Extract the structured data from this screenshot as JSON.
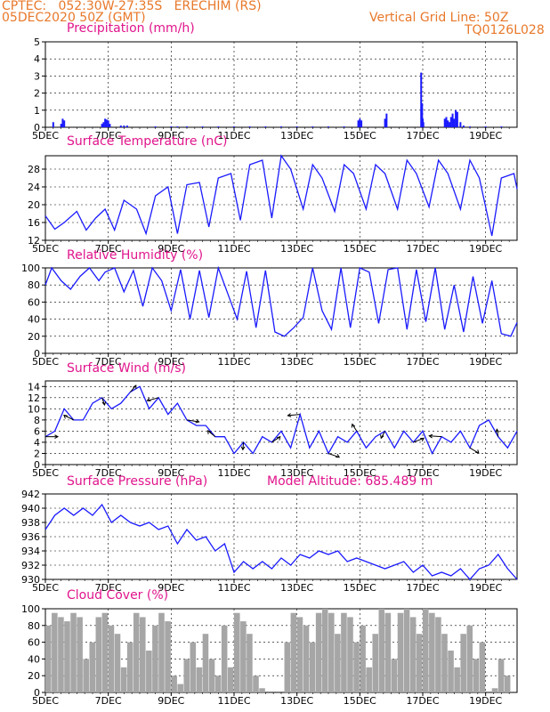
{
  "header": {
    "line1_left": "CPTEC:   052:30W-27:35S   ERECHIM (RS)",
    "line2_left": "05DEC2020 50Z (GMT)",
    "line1_right": "Vertical Grid Line: 50Z",
    "line2_right": "TQ0126L028"
  },
  "colors": {
    "header": "#e8782a",
    "title": "#e0158c",
    "series": "#1a1aff",
    "cloud": "#a6a6a6",
    "grid": "#000000"
  },
  "x_axis": {
    "day_ticks": [
      "5DEC",
      "7DEC",
      "9DEC",
      "11DEC",
      "13DEC",
      "15DEC",
      "17DEC",
      "19DEC"
    ],
    "day_values": [
      5,
      7,
      9,
      11,
      13,
      15,
      17,
      19
    ],
    "xlim": [
      5,
      20
    ]
  },
  "chart_data": [
    {
      "id": "precip",
      "type": "bar",
      "title": "Precipitation (mm/h)",
      "ylim": [
        0,
        5
      ],
      "yticks": [
        "0",
        "1",
        "2",
        "3",
        "4",
        "5"
      ],
      "ytick_values": [
        0,
        1,
        2,
        3,
        4,
        5
      ],
      "x": [
        5.25,
        5.5,
        5.55,
        5.6,
        6.8,
        6.85,
        6.9,
        6.95,
        7.0,
        7.05,
        7.4,
        7.5,
        7.6,
        8.5,
        9.0,
        9.2,
        9.5,
        10.0,
        10.5,
        11.0,
        11.5,
        12.0,
        12.5,
        13.0,
        13.5,
        14.0,
        14.5,
        14.95,
        15.0,
        15.05,
        15.8,
        15.85,
        16.95,
        16.98,
        17.0,
        17.02,
        17.7,
        17.75,
        17.8,
        17.85,
        17.9,
        17.95,
        18.0,
        18.05,
        18.1,
        18.2,
        18.3,
        18.5,
        19.0,
        19.5
      ],
      "values": [
        0.3,
        0.2,
        0.5,
        0.4,
        0.2,
        0.3,
        0.5,
        0.45,
        0.4,
        0.2,
        0.1,
        0.1,
        0.1,
        0.05,
        0.05,
        0.05,
        0.05,
        0.05,
        0.05,
        0.05,
        0.05,
        0.05,
        0.05,
        0.05,
        0.05,
        0.05,
        0.05,
        0.4,
        0.5,
        0.4,
        0.5,
        0.8,
        3.2,
        1.4,
        0.5,
        0.3,
        0.5,
        0.6,
        0.4,
        0.3,
        0.6,
        0.8,
        0.5,
        1.0,
        0.9,
        0.3,
        0.1,
        0.05,
        0.05,
        0.05
      ]
    },
    {
      "id": "temp",
      "type": "line",
      "title": "Surface Temperature (nC)",
      "ylim": [
        12,
        31
      ],
      "yticks": [
        "12",
        "16",
        "20",
        "24",
        "28"
      ],
      "ytick_values": [
        12,
        16,
        20,
        24,
        28
      ],
      "x": [
        5.0,
        5.3,
        5.6,
        6.0,
        6.3,
        6.6,
        6.9,
        7.2,
        7.5,
        7.9,
        8.2,
        8.5,
        8.9,
        9.2,
        9.5,
        9.9,
        10.2,
        10.5,
        10.9,
        11.2,
        11.5,
        11.9,
        12.2,
        12.5,
        12.8,
        13.2,
        13.5,
        13.8,
        14.2,
        14.5,
        14.8,
        15.2,
        15.5,
        15.8,
        16.2,
        16.5,
        16.8,
        17.2,
        17.5,
        17.8,
        18.2,
        18.5,
        18.8,
        19.2,
        19.5,
        19.9,
        20.0
      ],
      "values": [
        17.5,
        14.5,
        16,
        18.5,
        14.3,
        17,
        19,
        14.3,
        21,
        19,
        13.5,
        22,
        24,
        13.5,
        24.5,
        25,
        15,
        26,
        27,
        16.5,
        29,
        30,
        17,
        31,
        28,
        19,
        29,
        26,
        18.5,
        29,
        27,
        19,
        29,
        27,
        19,
        30,
        27,
        19.5,
        30,
        27,
        19,
        30,
        26,
        13,
        26,
        27,
        23.5
      ]
    },
    {
      "id": "rh",
      "type": "line",
      "title": "Relative Humidity (%)",
      "ylim": [
        0,
        100
      ],
      "yticks": [
        "0",
        "20",
        "40",
        "60",
        "80",
        "100"
      ],
      "ytick_values": [
        0,
        20,
        40,
        60,
        80,
        100
      ],
      "x": [
        5.0,
        5.2,
        5.5,
        5.8,
        6.1,
        6.4,
        6.7,
        6.9,
        7.2,
        7.5,
        7.8,
        8.1,
        8.4,
        8.7,
        9.0,
        9.3,
        9.6,
        9.9,
        10.2,
        10.5,
        10.8,
        11.1,
        11.4,
        11.7,
        12.0,
        12.3,
        12.6,
        12.9,
        13.2,
        13.5,
        13.8,
        14.1,
        14.4,
        14.7,
        15.0,
        15.3,
        15.6,
        15.9,
        16.2,
        16.5,
        16.8,
        17.1,
        17.4,
        17.7,
        18.0,
        18.3,
        18.6,
        18.9,
        19.2,
        19.5,
        19.8,
        20.0
      ],
      "values": [
        80,
        100,
        85,
        75,
        90,
        100,
        85,
        95,
        100,
        72,
        97,
        55,
        100,
        85,
        50,
        98,
        40,
        97,
        42,
        100,
        70,
        40,
        96,
        30,
        97,
        25,
        20,
        30,
        42,
        100,
        50,
        28,
        100,
        30,
        100,
        95,
        35,
        98,
        100,
        28,
        98,
        37,
        100,
        28,
        80,
        25,
        90,
        35,
        85,
        23,
        20,
        36
      ]
    },
    {
      "id": "wind",
      "type": "line",
      "title": "Surface Wind (m/s)",
      "ylim": [
        0,
        15
      ],
      "yticks": [
        "0",
        "2",
        "4",
        "6",
        "8",
        "10",
        "12",
        "14"
      ],
      "ytick_values": [
        0,
        2,
        4,
        6,
        8,
        10,
        12,
        14
      ],
      "x": [
        5.0,
        5.3,
        5.6,
        5.9,
        6.2,
        6.5,
        6.8,
        7.1,
        7.4,
        7.7,
        8.0,
        8.3,
        8.6,
        8.9,
        9.2,
        9.5,
        9.8,
        10.1,
        10.4,
        10.7,
        11.0,
        11.3,
        11.6,
        11.9,
        12.2,
        12.5,
        12.8,
        13.1,
        13.4,
        13.7,
        14.0,
        14.3,
        14.6,
        14.9,
        15.2,
        15.5,
        15.8,
        16.1,
        16.4,
        16.7,
        17.0,
        17.3,
        17.6,
        17.9,
        18.2,
        18.5,
        18.8,
        19.1,
        19.4,
        19.7,
        20.0
      ],
      "values": [
        5,
        6,
        10,
        8,
        8,
        11,
        12,
        10,
        11,
        13,
        14,
        10,
        12,
        9,
        11,
        8,
        7,
        7,
        5,
        5,
        2,
        4,
        2,
        5,
        4,
        6,
        3,
        9,
        3,
        6,
        2,
        5,
        4,
        6,
        3,
        5,
        6,
        3,
        6,
        4,
        6,
        2,
        5,
        4,
        6,
        3,
        7,
        8,
        5,
        3,
        6
      ]
    },
    {
      "id": "pres",
      "type": "line",
      "title": "Surface Pressure (hPa)",
      "annotation": "Model Altitude: 685.489 m",
      "ylim": [
        930,
        942
      ],
      "yticks": [
        "930",
        "932",
        "934",
        "936",
        "938",
        "940",
        "942"
      ],
      "ytick_values": [
        930,
        932,
        934,
        936,
        938,
        940,
        942
      ],
      "x": [
        5.0,
        5.3,
        5.6,
        5.9,
        6.2,
        6.5,
        6.8,
        7.1,
        7.4,
        7.7,
        8.0,
        8.3,
        8.6,
        8.9,
        9.2,
        9.5,
        9.8,
        10.1,
        10.4,
        10.7,
        11.0,
        11.3,
        11.6,
        11.9,
        12.2,
        12.5,
        12.8,
        13.1,
        13.4,
        13.7,
        14.0,
        14.3,
        14.6,
        14.9,
        15.2,
        15.5,
        15.8,
        16.1,
        16.4,
        16.7,
        17.0,
        17.3,
        17.6,
        17.9,
        18.2,
        18.5,
        18.8,
        19.1,
        19.4,
        19.7,
        20.0
      ],
      "values": [
        937,
        939,
        940,
        939,
        940,
        939,
        940.5,
        938,
        939,
        938,
        937.5,
        938,
        937,
        937.5,
        935,
        937,
        935.5,
        936,
        934,
        935,
        931,
        932.5,
        931.5,
        932.5,
        931.5,
        933,
        932,
        933.5,
        933,
        934,
        933.5,
        934,
        932.5,
        933,
        932.5,
        932,
        931.5,
        932,
        932.5,
        931,
        932,
        930.5,
        931,
        930.5,
        931.5,
        930,
        931.5,
        932,
        933.5,
        931.5,
        930
      ]
    },
    {
      "id": "cloud",
      "type": "area",
      "title": "Cloud Cover (%)",
      "ylim": [
        0,
        100
      ],
      "yticks": [
        "0",
        "20",
        "40",
        "60",
        "80",
        "100"
      ],
      "ytick_values": [
        0,
        20,
        40,
        60,
        80,
        100
      ],
      "x": [
        5.0,
        5.2,
        5.4,
        5.6,
        5.8,
        6.0,
        6.2,
        6.4,
        6.6,
        6.8,
        7.0,
        7.2,
        7.4,
        7.6,
        7.8,
        8.0,
        8.2,
        8.4,
        8.6,
        8.8,
        9.0,
        9.2,
        9.4,
        9.6,
        9.8,
        10.0,
        10.2,
        10.4,
        10.6,
        10.8,
        11.0,
        11.2,
        11.4,
        11.6,
        11.8,
        12.0,
        12.2,
        12.4,
        12.6,
        12.8,
        13.0,
        13.2,
        13.4,
        13.6,
        13.8,
        14.0,
        14.2,
        14.4,
        14.6,
        14.8,
        15.0,
        15.2,
        15.4,
        15.6,
        15.8,
        16.0,
        16.2,
        16.4,
        16.6,
        16.8,
        17.0,
        17.2,
        17.4,
        17.6,
        17.8,
        18.0,
        18.2,
        18.4,
        18.6,
        18.8,
        19.0,
        19.2,
        19.4,
        19.6,
        19.8,
        20.0
      ],
      "values": [
        80,
        95,
        90,
        85,
        95,
        90,
        40,
        60,
        90,
        95,
        80,
        70,
        30,
        60,
        95,
        90,
        50,
        80,
        95,
        85,
        20,
        10,
        40,
        60,
        30,
        70,
        40,
        20,
        80,
        30,
        95,
        85,
        70,
        20,
        5,
        0,
        0,
        0,
        60,
        95,
        90,
        80,
        60,
        95,
        100,
        95,
        70,
        95,
        90,
        60,
        80,
        30,
        70,
        100,
        95,
        40,
        95,
        100,
        90,
        70,
        100,
        95,
        90,
        70,
        50,
        30,
        70,
        80,
        40,
        60,
        0,
        5,
        40,
        20,
        0,
        0
      ]
    }
  ]
}
